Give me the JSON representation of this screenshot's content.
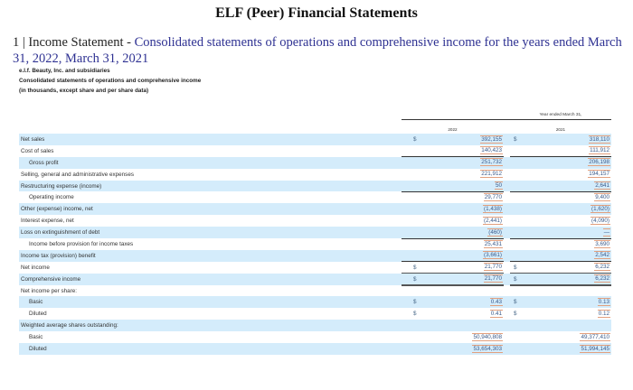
{
  "page": {
    "title": "ELF (Peer) Financial Statements",
    "section_prefix": "1 | Income Statement - ",
    "section_description": "Consolidated statements of operations and comprehensive income for the years ended March 31, 2022, March 31, 2021",
    "company": "e.l.f. Beauty, Inc. and subsidiaries",
    "statement_name": "Consolidated statements of operations and comprehensive income",
    "units_note": "(in thousands, except share and per share data)"
  },
  "table": {
    "period_header": "Year ended March 31,",
    "columns": [
      "2022",
      "2021"
    ],
    "rows": [
      {
        "label": "Net sales",
        "indent": false,
        "currency_2022": "$",
        "v2022": "392,155",
        "currency_2021": "$",
        "v2021": "318,110"
      },
      {
        "label": "Cost of sales",
        "indent": false,
        "currency_2022": "",
        "v2022": "140,423",
        "currency_2021": "",
        "v2021": "111,912"
      },
      {
        "label": "Gross profit",
        "indent": true,
        "currency_2022": "",
        "v2022": "251,732",
        "currency_2021": "",
        "v2021": "206,198"
      },
      {
        "label": "Selling, general and administrative expenses",
        "indent": false,
        "currency_2022": "",
        "v2022": "221,912",
        "currency_2021": "",
        "v2021": "194,157"
      },
      {
        "label": "Restructuring expense (income)",
        "indent": false,
        "currency_2022": "",
        "v2022": "50",
        "currency_2021": "",
        "v2021": "2,641"
      },
      {
        "label": "Operating income",
        "indent": true,
        "currency_2022": "",
        "v2022": "29,770",
        "currency_2021": "",
        "v2021": "9,400"
      },
      {
        "label": "Other (expense) income, net",
        "indent": false,
        "currency_2022": "",
        "v2022": "(1,438)",
        "currency_2021": "",
        "v2021": "(1,620)"
      },
      {
        "label": "Interest expense, net",
        "indent": false,
        "currency_2022": "",
        "v2022": "(2,441)",
        "currency_2021": "",
        "v2021": "(4,090)"
      },
      {
        "label": "Loss on extinguishment of debt",
        "indent": false,
        "currency_2022": "",
        "v2022": "(460)",
        "currency_2021": "",
        "v2021": "—"
      },
      {
        "label": "Income before provision for income taxes",
        "indent": true,
        "currency_2022": "",
        "v2022": "25,431",
        "currency_2021": "",
        "v2021": "3,690"
      },
      {
        "label": "Income tax (provision) benefit",
        "indent": false,
        "currency_2022": "",
        "v2022": "(3,661)",
        "currency_2021": "",
        "v2021": "2,542"
      },
      {
        "label": "Net income",
        "indent": false,
        "currency_2022": "$",
        "v2022": "21,770",
        "currency_2021": "$",
        "v2021": "6,232"
      },
      {
        "label": "Comprehensive income",
        "indent": false,
        "currency_2022": "$",
        "v2022": "21,770",
        "currency_2021": "$",
        "v2021": "6,232"
      },
      {
        "label": "Net income per share:",
        "indent": false,
        "currency_2022": "",
        "v2022": "",
        "currency_2021": "",
        "v2021": ""
      },
      {
        "label": "Basic",
        "indent": true,
        "currency_2022": "$",
        "v2022": "0.43",
        "currency_2021": "$",
        "v2021": "0.13"
      },
      {
        "label": "Diluted",
        "indent": true,
        "currency_2022": "$",
        "v2022": "0.41",
        "currency_2021": "$",
        "v2021": "0.12"
      },
      {
        "label": "Weighted average shares outstanding:",
        "indent": false,
        "currency_2022": "",
        "v2022": "",
        "currency_2021": "",
        "v2021": ""
      },
      {
        "label": "Basic",
        "indent": true,
        "currency_2022": "",
        "v2022": "50,940,808",
        "currency_2021": "",
        "v2021": "49,377,410"
      },
      {
        "label": "Diluted",
        "indent": true,
        "currency_2022": "",
        "v2022": "53,654,303",
        "currency_2021": "",
        "v2021": "51,994,145"
      }
    ]
  },
  "colors": {
    "row_shade": "#d4ecfb",
    "section_description": "#2e3192",
    "value_highlight_border": "#e2a07e"
  }
}
